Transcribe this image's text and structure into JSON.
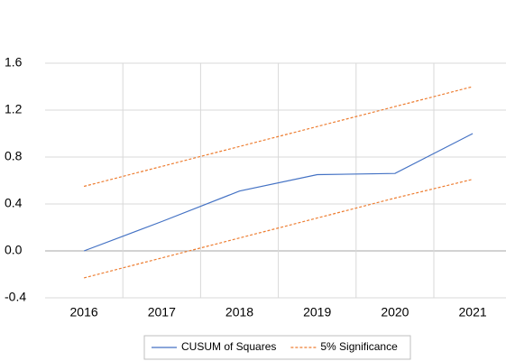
{
  "chart_data": {
    "type": "line",
    "categories": [
      "2016",
      "2017",
      "2018",
      "2019",
      "2020",
      "2021"
    ],
    "series": [
      {
        "name": "CUSUM of Squares",
        "color": "#4472c4",
        "dash": false,
        "values": [
          0.0,
          0.25,
          0.51,
          0.65,
          0.66,
          1.0
        ]
      },
      {
        "name": "5% Significance",
        "color": "#ed7d31",
        "dash": true,
        "values": [
          0.55,
          0.72,
          0.89,
          1.06,
          1.23,
          1.4
        ],
        "lower_values": [
          -0.23,
          -0.06,
          0.11,
          0.28,
          0.45,
          0.61
        ]
      }
    ],
    "ylim": [
      -0.4,
      1.6
    ],
    "yticks": [
      -0.4,
      {
        "value": 0,
        "label": "0.0"
      },
      0.4,
      0.8,
      1.2,
      1.6
    ],
    "grid": true
  }
}
